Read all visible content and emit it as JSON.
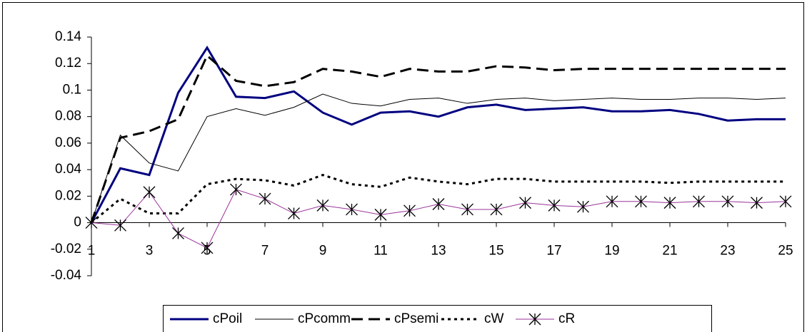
{
  "chart_data": {
    "type": "line",
    "x": [
      1,
      2,
      3,
      4,
      5,
      6,
      7,
      8,
      9,
      10,
      11,
      12,
      13,
      14,
      15,
      16,
      17,
      18,
      19,
      20,
      21,
      22,
      23,
      24,
      25
    ],
    "xlim": [
      1,
      25
    ],
    "xticks": [
      1,
      3,
      5,
      7,
      9,
      11,
      13,
      15,
      17,
      19,
      21,
      23,
      25
    ],
    "ylim": [
      -0.04,
      0.14
    ],
    "yticks": [
      -0.04,
      -0.02,
      0,
      0.02,
      0.04,
      0.06,
      0.08,
      0.1,
      0.12,
      0.14
    ],
    "legend": "bottom",
    "series": [
      {
        "name": "cPoil",
        "color": "#000080",
        "values": [
          0,
          0.041,
          0.036,
          0.098,
          0.132,
          0.095,
          0.094,
          0.099,
          0.083,
          0.074,
          0.083,
          0.084,
          0.08,
          0.087,
          0.089,
          0.085,
          0.086,
          0.087,
          0.084,
          0.084,
          0.085,
          0.082,
          0.077,
          0.078,
          0.078
        ]
      },
      {
        "name": "cPcomm",
        "color": "#000000",
        "values": [
          0,
          0.066,
          0.045,
          0.039,
          0.08,
          0.086,
          0.081,
          0.087,
          0.097,
          0.09,
          0.088,
          0.093,
          0.094,
          0.09,
          0.093,
          0.094,
          0.092,
          0.093,
          0.094,
          0.093,
          0.093,
          0.094,
          0.094,
          0.093,
          0.094
        ]
      },
      {
        "name": "cPsemi",
        "color": "#000000",
        "values": [
          0,
          0.064,
          0.069,
          0.078,
          0.126,
          0.107,
          0.103,
          0.106,
          0.116,
          0.114,
          0.11,
          0.116,
          0.114,
          0.114,
          0.118,
          0.117,
          0.115,
          0.116,
          0.116,
          0.116,
          0.116,
          0.116,
          0.116,
          0.116,
          0.116
        ]
      },
      {
        "name": "cW",
        "color": "#000000",
        "values": [
          0,
          0.018,
          0.007,
          0.007,
          0.029,
          0.033,
          0.032,
          0.028,
          0.036,
          0.029,
          0.027,
          0.034,
          0.031,
          0.029,
          0.033,
          0.033,
          0.031,
          0.031,
          0.031,
          0.031,
          0.03,
          0.031,
          0.031,
          0.031,
          0.031
        ]
      },
      {
        "name": "cR",
        "color": "#993399",
        "values": [
          0,
          -0.002,
          0.023,
          -0.008,
          -0.019,
          0.025,
          0.018,
          0.007,
          0.013,
          0.01,
          0.006,
          0.009,
          0.014,
          0.01,
          0.01,
          0.015,
          0.013,
          0.012,
          0.016,
          0.016,
          0.015,
          0.016,
          0.016,
          0.015,
          0.016
        ]
      }
    ]
  }
}
